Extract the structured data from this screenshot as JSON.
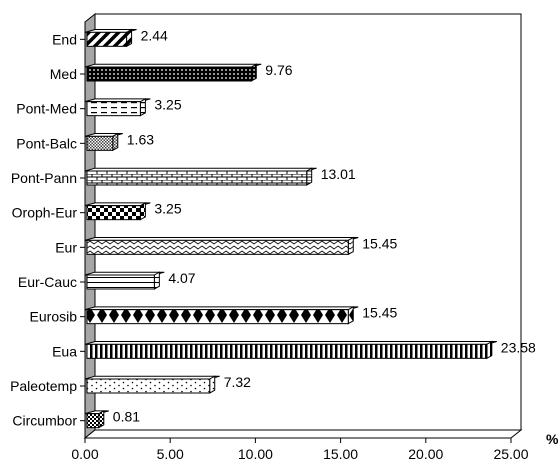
{
  "chart_data": {
    "type": "bar",
    "orientation": "horizontal",
    "title": "",
    "xlabel": "%",
    "ylabel": "",
    "categories": [
      "End",
      "Med",
      "Pont-Med",
      "Pont-Balc",
      "Pont-Pann",
      "Oroph-Eur",
      "Eur",
      "Eur-Cauc",
      "Eurosib",
      "Eua",
      "Paleotemp",
      "Circumbor"
    ],
    "values": [
      2.44,
      9.76,
      3.25,
      1.63,
      13.01,
      3.25,
      15.45,
      4.07,
      15.45,
      23.58,
      7.32,
      0.81
    ],
    "data_labels": [
      "2.44",
      "9.76",
      "3.25",
      "1.63",
      "13.01",
      "3.25",
      "15.45",
      "4.07",
      "15.45",
      "23.58",
      "7.32",
      "0.81"
    ],
    "xticks": [
      "0.00",
      "5.00",
      "10.00",
      "15.00",
      "20.00",
      "25.00"
    ],
    "xlim": [
      0,
      25
    ],
    "grid": false,
    "legend": "none",
    "style": "3d",
    "patterns": [
      "diag-stripes",
      "dots-dense",
      "dashes",
      "crosshatch",
      "bricks",
      "checker",
      "waves",
      "horizontal-lines",
      "diamonds",
      "vertical-stripes",
      "dots-sparse",
      "checker-small"
    ]
  }
}
